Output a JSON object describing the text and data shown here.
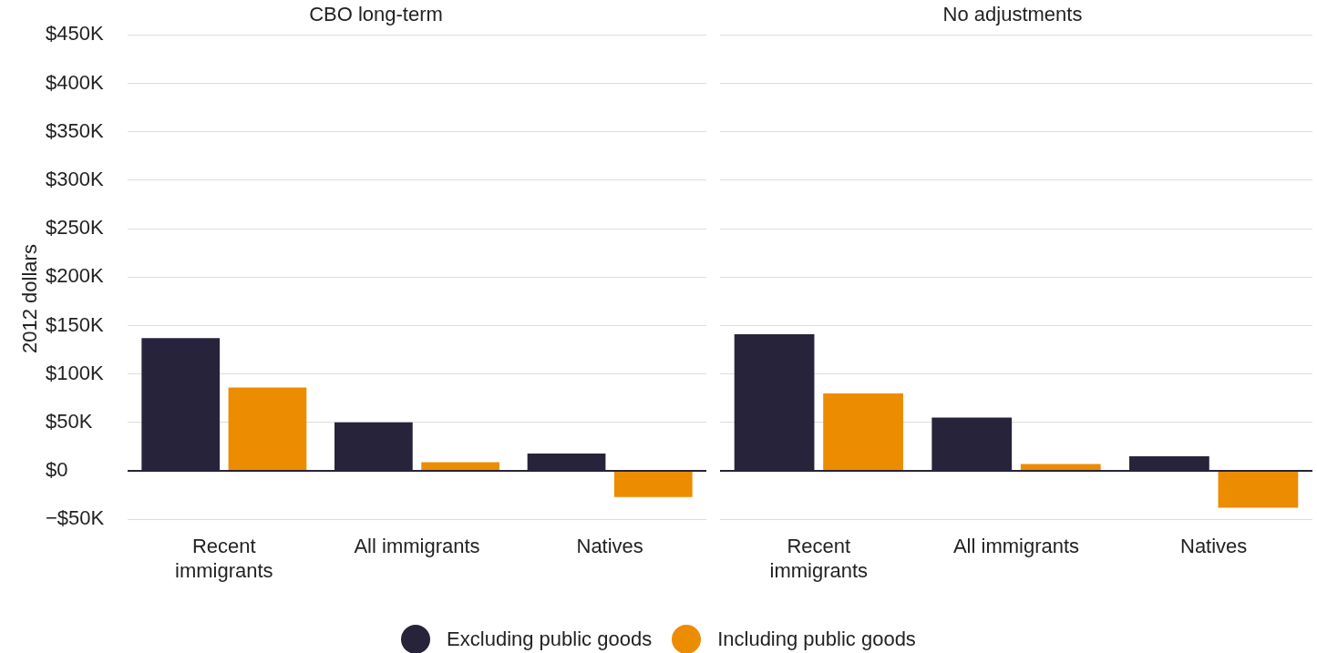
{
  "chart_data": [
    {
      "type": "bar",
      "title": "CBO long-term",
      "ylabel": "2012 dollars",
      "categories": [
        "Recent\nimmigrants",
        "All immigrants",
        "Natives"
      ],
      "series": [
        {
          "name": "Excluding public goods",
          "color": "#27233a",
          "values": [
            137,
            50,
            18
          ]
        },
        {
          "name": "Including public goods",
          "color": "#ec8c00",
          "values": [
            86,
            9,
            -27
          ]
        }
      ],
      "ylim": [
        -50,
        450
      ],
      "yticks": [
        {
          "value": -50,
          "label": "−$50K"
        },
        {
          "value": 0,
          "label": "$0"
        },
        {
          "value": 50,
          "label": "$50K"
        },
        {
          "value": 100,
          "label": "$100K"
        },
        {
          "value": 150,
          "label": "$150K"
        },
        {
          "value": 200,
          "label": "$200K"
        },
        {
          "value": 250,
          "label": "$250K"
        },
        {
          "value": 300,
          "label": "$300K"
        },
        {
          "value": 350,
          "label": "$350K"
        },
        {
          "value": 400,
          "label": "$400K"
        },
        {
          "value": 450,
          "label": "$450K"
        }
      ],
      "grid": "y",
      "legend": "bottom"
    },
    {
      "type": "bar",
      "title": "No adjustments",
      "categories": [
        "Recent\nimmigrants",
        "All immigrants",
        "Natives"
      ],
      "series": [
        {
          "color": "#27233a",
          "values": [
            141,
            55,
            15
          ]
        },
        {
          "color": "#ec8c00",
          "values": [
            80,
            7,
            -38
          ]
        }
      ],
      "ylim": [
        -50,
        450
      ],
      "yticks": [
        -50,
        0,
        50,
        100,
        150,
        200,
        250,
        300,
        350,
        400,
        450
      ],
      "grid": "y",
      "tick_labels": "x"
    }
  ]
}
